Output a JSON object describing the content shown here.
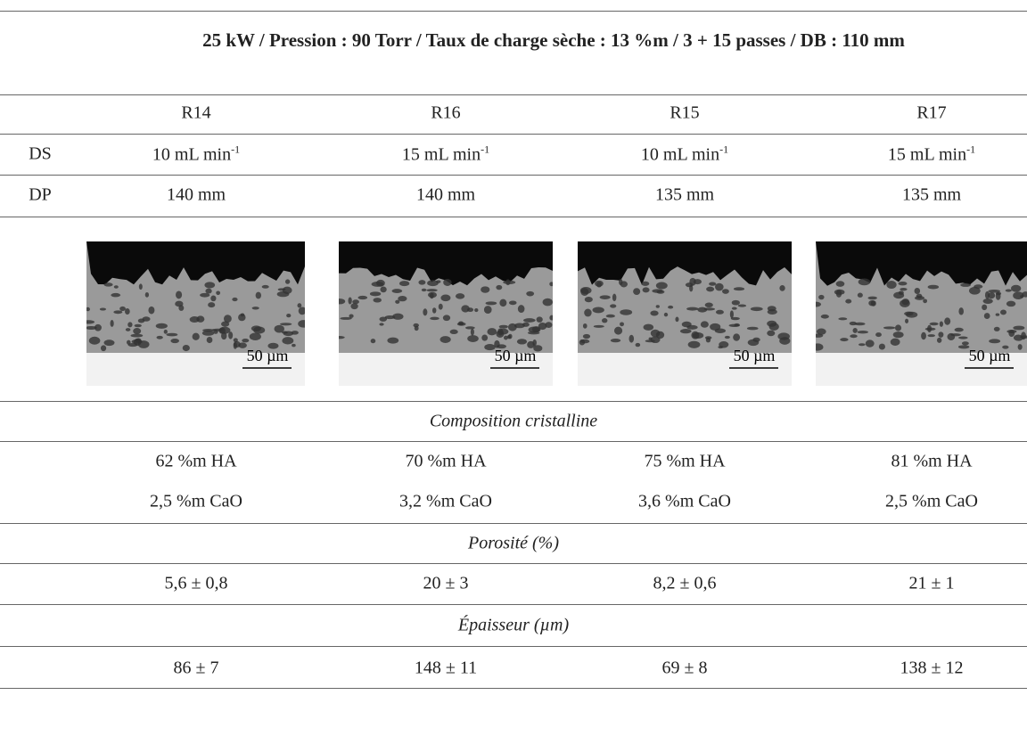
{
  "header": {
    "title": "25 kW / Pression : 90 Torr / Taux de charge sèche : 13 %m / 3 + 15 passes / DB : 110 mm"
  },
  "columns": [
    "R14",
    "R16",
    "R15",
    "R17"
  ],
  "ds": {
    "label": "DS",
    "values": [
      "10 mL min",
      "15 mL min",
      "10 mL min",
      "15 mL min"
    ],
    "exponent": "-1"
  },
  "dp": {
    "label": "DP",
    "values": [
      "140 mm",
      "140 mm",
      "135 mm",
      "135 mm"
    ]
  },
  "images": {
    "scale_label": "50 µm"
  },
  "composition": {
    "title": "Composition cristalline",
    "ha": [
      "62 %m HA",
      "70 %m HA",
      "75 %m HA",
      "81 %m HA"
    ],
    "cao": [
      "2,5 %m CaO",
      "3,2 %m CaO",
      "3,6 %m CaO",
      "2,5 %m CaO"
    ]
  },
  "porosity": {
    "title": "Porosité (%)",
    "values": [
      "5,6 ± 0,8",
      "20 ± 3",
      "8,2 ± 0,6",
      "21 ± 1"
    ]
  },
  "thickness": {
    "title": "Épaisseur (µm)",
    "values": [
      "86 ± 7",
      "148 ± 11",
      "69 ± 8",
      "138 ± 12"
    ]
  }
}
